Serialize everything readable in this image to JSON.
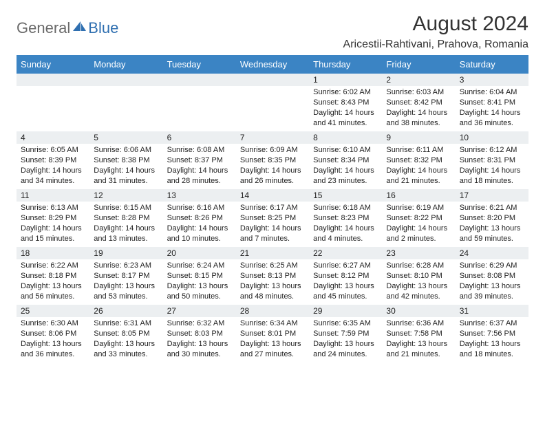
{
  "logo": {
    "general": "General",
    "blue": "Blue"
  },
  "title": "August 2024",
  "location": "Aricestii-Rahtivani, Prahova, Romania",
  "colors": {
    "header_bg": "#3b84c4",
    "header_text": "#ffffff",
    "daynum_bg": "#eceff1",
    "row_border": "#2f6fb0",
    "logo_gray": "#6a6a6a",
    "logo_blue": "#2f6fb0"
  },
  "daysOfWeek": [
    "Sunday",
    "Monday",
    "Tuesday",
    "Wednesday",
    "Thursday",
    "Friday",
    "Saturday"
  ],
  "weeks": [
    [
      null,
      null,
      null,
      null,
      {
        "n": "1",
        "sr": "6:02 AM",
        "ss": "8:43 PM",
        "dl": "14 hours and 41 minutes."
      },
      {
        "n": "2",
        "sr": "6:03 AM",
        "ss": "8:42 PM",
        "dl": "14 hours and 38 minutes."
      },
      {
        "n": "3",
        "sr": "6:04 AM",
        "ss": "8:41 PM",
        "dl": "14 hours and 36 minutes."
      }
    ],
    [
      {
        "n": "4",
        "sr": "6:05 AM",
        "ss": "8:39 PM",
        "dl": "14 hours and 34 minutes."
      },
      {
        "n": "5",
        "sr": "6:06 AM",
        "ss": "8:38 PM",
        "dl": "14 hours and 31 minutes."
      },
      {
        "n": "6",
        "sr": "6:08 AM",
        "ss": "8:37 PM",
        "dl": "14 hours and 28 minutes."
      },
      {
        "n": "7",
        "sr": "6:09 AM",
        "ss": "8:35 PM",
        "dl": "14 hours and 26 minutes."
      },
      {
        "n": "8",
        "sr": "6:10 AM",
        "ss": "8:34 PM",
        "dl": "14 hours and 23 minutes."
      },
      {
        "n": "9",
        "sr": "6:11 AM",
        "ss": "8:32 PM",
        "dl": "14 hours and 21 minutes."
      },
      {
        "n": "10",
        "sr": "6:12 AM",
        "ss": "8:31 PM",
        "dl": "14 hours and 18 minutes."
      }
    ],
    [
      {
        "n": "11",
        "sr": "6:13 AM",
        "ss": "8:29 PM",
        "dl": "14 hours and 15 minutes."
      },
      {
        "n": "12",
        "sr": "6:15 AM",
        "ss": "8:28 PM",
        "dl": "14 hours and 13 minutes."
      },
      {
        "n": "13",
        "sr": "6:16 AM",
        "ss": "8:26 PM",
        "dl": "14 hours and 10 minutes."
      },
      {
        "n": "14",
        "sr": "6:17 AM",
        "ss": "8:25 PM",
        "dl": "14 hours and 7 minutes."
      },
      {
        "n": "15",
        "sr": "6:18 AM",
        "ss": "8:23 PM",
        "dl": "14 hours and 4 minutes."
      },
      {
        "n": "16",
        "sr": "6:19 AM",
        "ss": "8:22 PM",
        "dl": "14 hours and 2 minutes."
      },
      {
        "n": "17",
        "sr": "6:21 AM",
        "ss": "8:20 PM",
        "dl": "13 hours and 59 minutes."
      }
    ],
    [
      {
        "n": "18",
        "sr": "6:22 AM",
        "ss": "8:18 PM",
        "dl": "13 hours and 56 minutes."
      },
      {
        "n": "19",
        "sr": "6:23 AM",
        "ss": "8:17 PM",
        "dl": "13 hours and 53 minutes."
      },
      {
        "n": "20",
        "sr": "6:24 AM",
        "ss": "8:15 PM",
        "dl": "13 hours and 50 minutes."
      },
      {
        "n": "21",
        "sr": "6:25 AM",
        "ss": "8:13 PM",
        "dl": "13 hours and 48 minutes."
      },
      {
        "n": "22",
        "sr": "6:27 AM",
        "ss": "8:12 PM",
        "dl": "13 hours and 45 minutes."
      },
      {
        "n": "23",
        "sr": "6:28 AM",
        "ss": "8:10 PM",
        "dl": "13 hours and 42 minutes."
      },
      {
        "n": "24",
        "sr": "6:29 AM",
        "ss": "8:08 PM",
        "dl": "13 hours and 39 minutes."
      }
    ],
    [
      {
        "n": "25",
        "sr": "6:30 AM",
        "ss": "8:06 PM",
        "dl": "13 hours and 36 minutes."
      },
      {
        "n": "26",
        "sr": "6:31 AM",
        "ss": "8:05 PM",
        "dl": "13 hours and 33 minutes."
      },
      {
        "n": "27",
        "sr": "6:32 AM",
        "ss": "8:03 PM",
        "dl": "13 hours and 30 minutes."
      },
      {
        "n": "28",
        "sr": "6:34 AM",
        "ss": "8:01 PM",
        "dl": "13 hours and 27 minutes."
      },
      {
        "n": "29",
        "sr": "6:35 AM",
        "ss": "7:59 PM",
        "dl": "13 hours and 24 minutes."
      },
      {
        "n": "30",
        "sr": "6:36 AM",
        "ss": "7:58 PM",
        "dl": "13 hours and 21 minutes."
      },
      {
        "n": "31",
        "sr": "6:37 AM",
        "ss": "7:56 PM",
        "dl": "13 hours and 18 minutes."
      }
    ]
  ],
  "labels": {
    "sunrise": "Sunrise:",
    "sunset": "Sunset:",
    "daylight": "Daylight:"
  }
}
